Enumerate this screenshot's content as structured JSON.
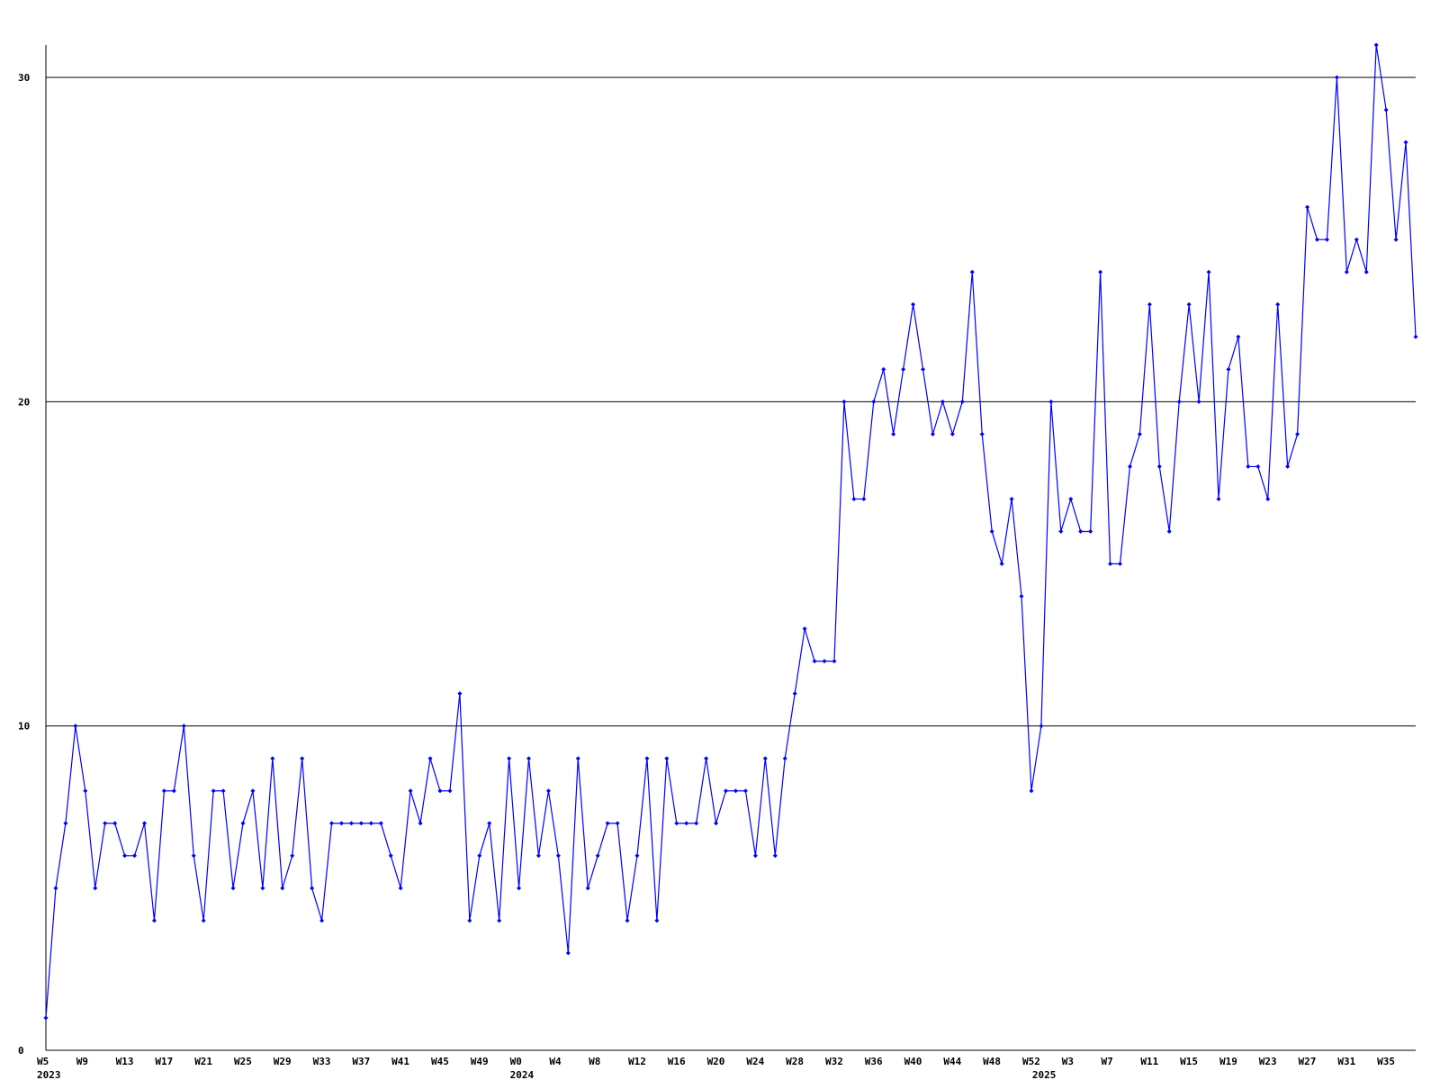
{
  "chart_data": {
    "type": "line",
    "categories": [
      "W5",
      null,
      null,
      null,
      "W9",
      null,
      null,
      null,
      "W13",
      null,
      null,
      null,
      "W17",
      null,
      null,
      null,
      "W21",
      null,
      null,
      null,
      "W25",
      null,
      null,
      null,
      "W29",
      null,
      null,
      null,
      "W33",
      null,
      null,
      null,
      "W37",
      null,
      null,
      null,
      "W41",
      null,
      null,
      null,
      "W45",
      null,
      null,
      null,
      "W49",
      null,
      null,
      null,
      "W0",
      null,
      null,
      null,
      "W4",
      null,
      null,
      null,
      "W8",
      null,
      null,
      null,
      "W12",
      null,
      null,
      null,
      "W16",
      null,
      null,
      null,
      "W20",
      null,
      null,
      null,
      "W24",
      null,
      null,
      null,
      "W28",
      null,
      null,
      null,
      "W32",
      null,
      null,
      null,
      "W36",
      null,
      null,
      null,
      "W40",
      null,
      null,
      null,
      "W44",
      null,
      null,
      null,
      "W48",
      null,
      null,
      null,
      "W52",
      null,
      null,
      null,
      "W3",
      null,
      null,
      null,
      "W7",
      null,
      null,
      null,
      "W11",
      null,
      null,
      null,
      "W15",
      null,
      null,
      null,
      "W19",
      null,
      null,
      null,
      "W23",
      null,
      null,
      null,
      "W27",
      null,
      null,
      null,
      "W31",
      null,
      null,
      null,
      "W35",
      null,
      null,
      null
    ],
    "years": [
      "2023",
      null,
      null,
      null,
      null,
      null,
      null,
      null,
      null,
      null,
      null,
      null,
      null,
      null,
      null,
      null,
      null,
      null,
      null,
      null,
      null,
      null,
      null,
      null,
      null,
      null,
      null,
      null,
      null,
      null,
      null,
      null,
      null,
      null,
      null,
      null,
      null,
      null,
      null,
      null,
      null,
      null,
      null,
      null,
      null,
      null,
      null,
      null,
      "2024",
      null,
      null,
      null,
      null,
      null,
      null,
      null,
      null,
      null,
      null,
      null,
      null,
      null,
      null,
      null,
      null,
      null,
      null,
      null,
      null,
      null,
      null,
      null,
      null,
      null,
      null,
      null,
      null,
      null,
      null,
      null,
      null,
      null,
      null,
      null,
      null,
      null,
      null,
      null,
      null,
      null,
      null,
      null,
      null,
      null,
      null,
      null,
      null,
      null,
      null,
      null,
      null,
      "2025",
      null,
      null,
      null,
      null,
      null,
      null,
      null,
      null,
      null,
      null,
      null,
      null,
      null,
      null,
      null,
      null,
      null,
      null,
      null,
      null,
      null,
      null,
      null,
      null,
      null,
      null,
      null,
      null,
      null,
      null,
      null,
      null,
      null,
      null,
      null,
      null,
      null
    ],
    "series": [
      {
        "color": "#0000ff",
        "values": [
          1,
          5,
          7,
          10,
          8,
          5,
          7,
          7,
          6,
          6,
          7,
          4,
          8,
          8,
          10,
          6,
          4,
          8,
          8,
          5,
          7,
          8,
          5,
          9,
          5,
          6,
          9,
          5,
          4,
          7,
          7,
          7,
          7,
          7,
          7,
          6,
          5,
          8,
          7,
          9,
          8,
          8,
          11,
          4,
          6,
          7,
          4,
          9,
          5,
          9,
          6,
          8,
          6,
          3,
          9,
          5,
          6,
          7,
          7,
          4,
          6,
          9,
          4,
          9,
          7,
          7,
          7,
          9,
          7,
          8,
          8,
          8,
          6,
          9,
          6,
          9,
          11,
          13,
          12,
          12,
          12,
          20,
          17,
          17,
          20,
          21,
          19,
          21,
          23,
          21,
          19,
          20,
          19,
          20,
          24,
          19,
          16,
          15,
          17,
          14,
          8,
          10,
          20,
          16,
          17,
          16,
          16,
          24,
          15,
          15,
          18,
          19,
          23,
          18,
          16,
          20,
          23,
          20,
          24,
          17,
          21,
          22,
          18,
          18,
          17,
          23,
          18,
          19,
          26,
          25,
          25,
          30,
          24,
          25,
          24,
          31,
          29,
          25,
          28,
          22
        ]
      }
    ],
    "ylim": [
      0,
      31
    ],
    "yticks": [
      0,
      10,
      20,
      30
    ],
    "grid": true
  }
}
